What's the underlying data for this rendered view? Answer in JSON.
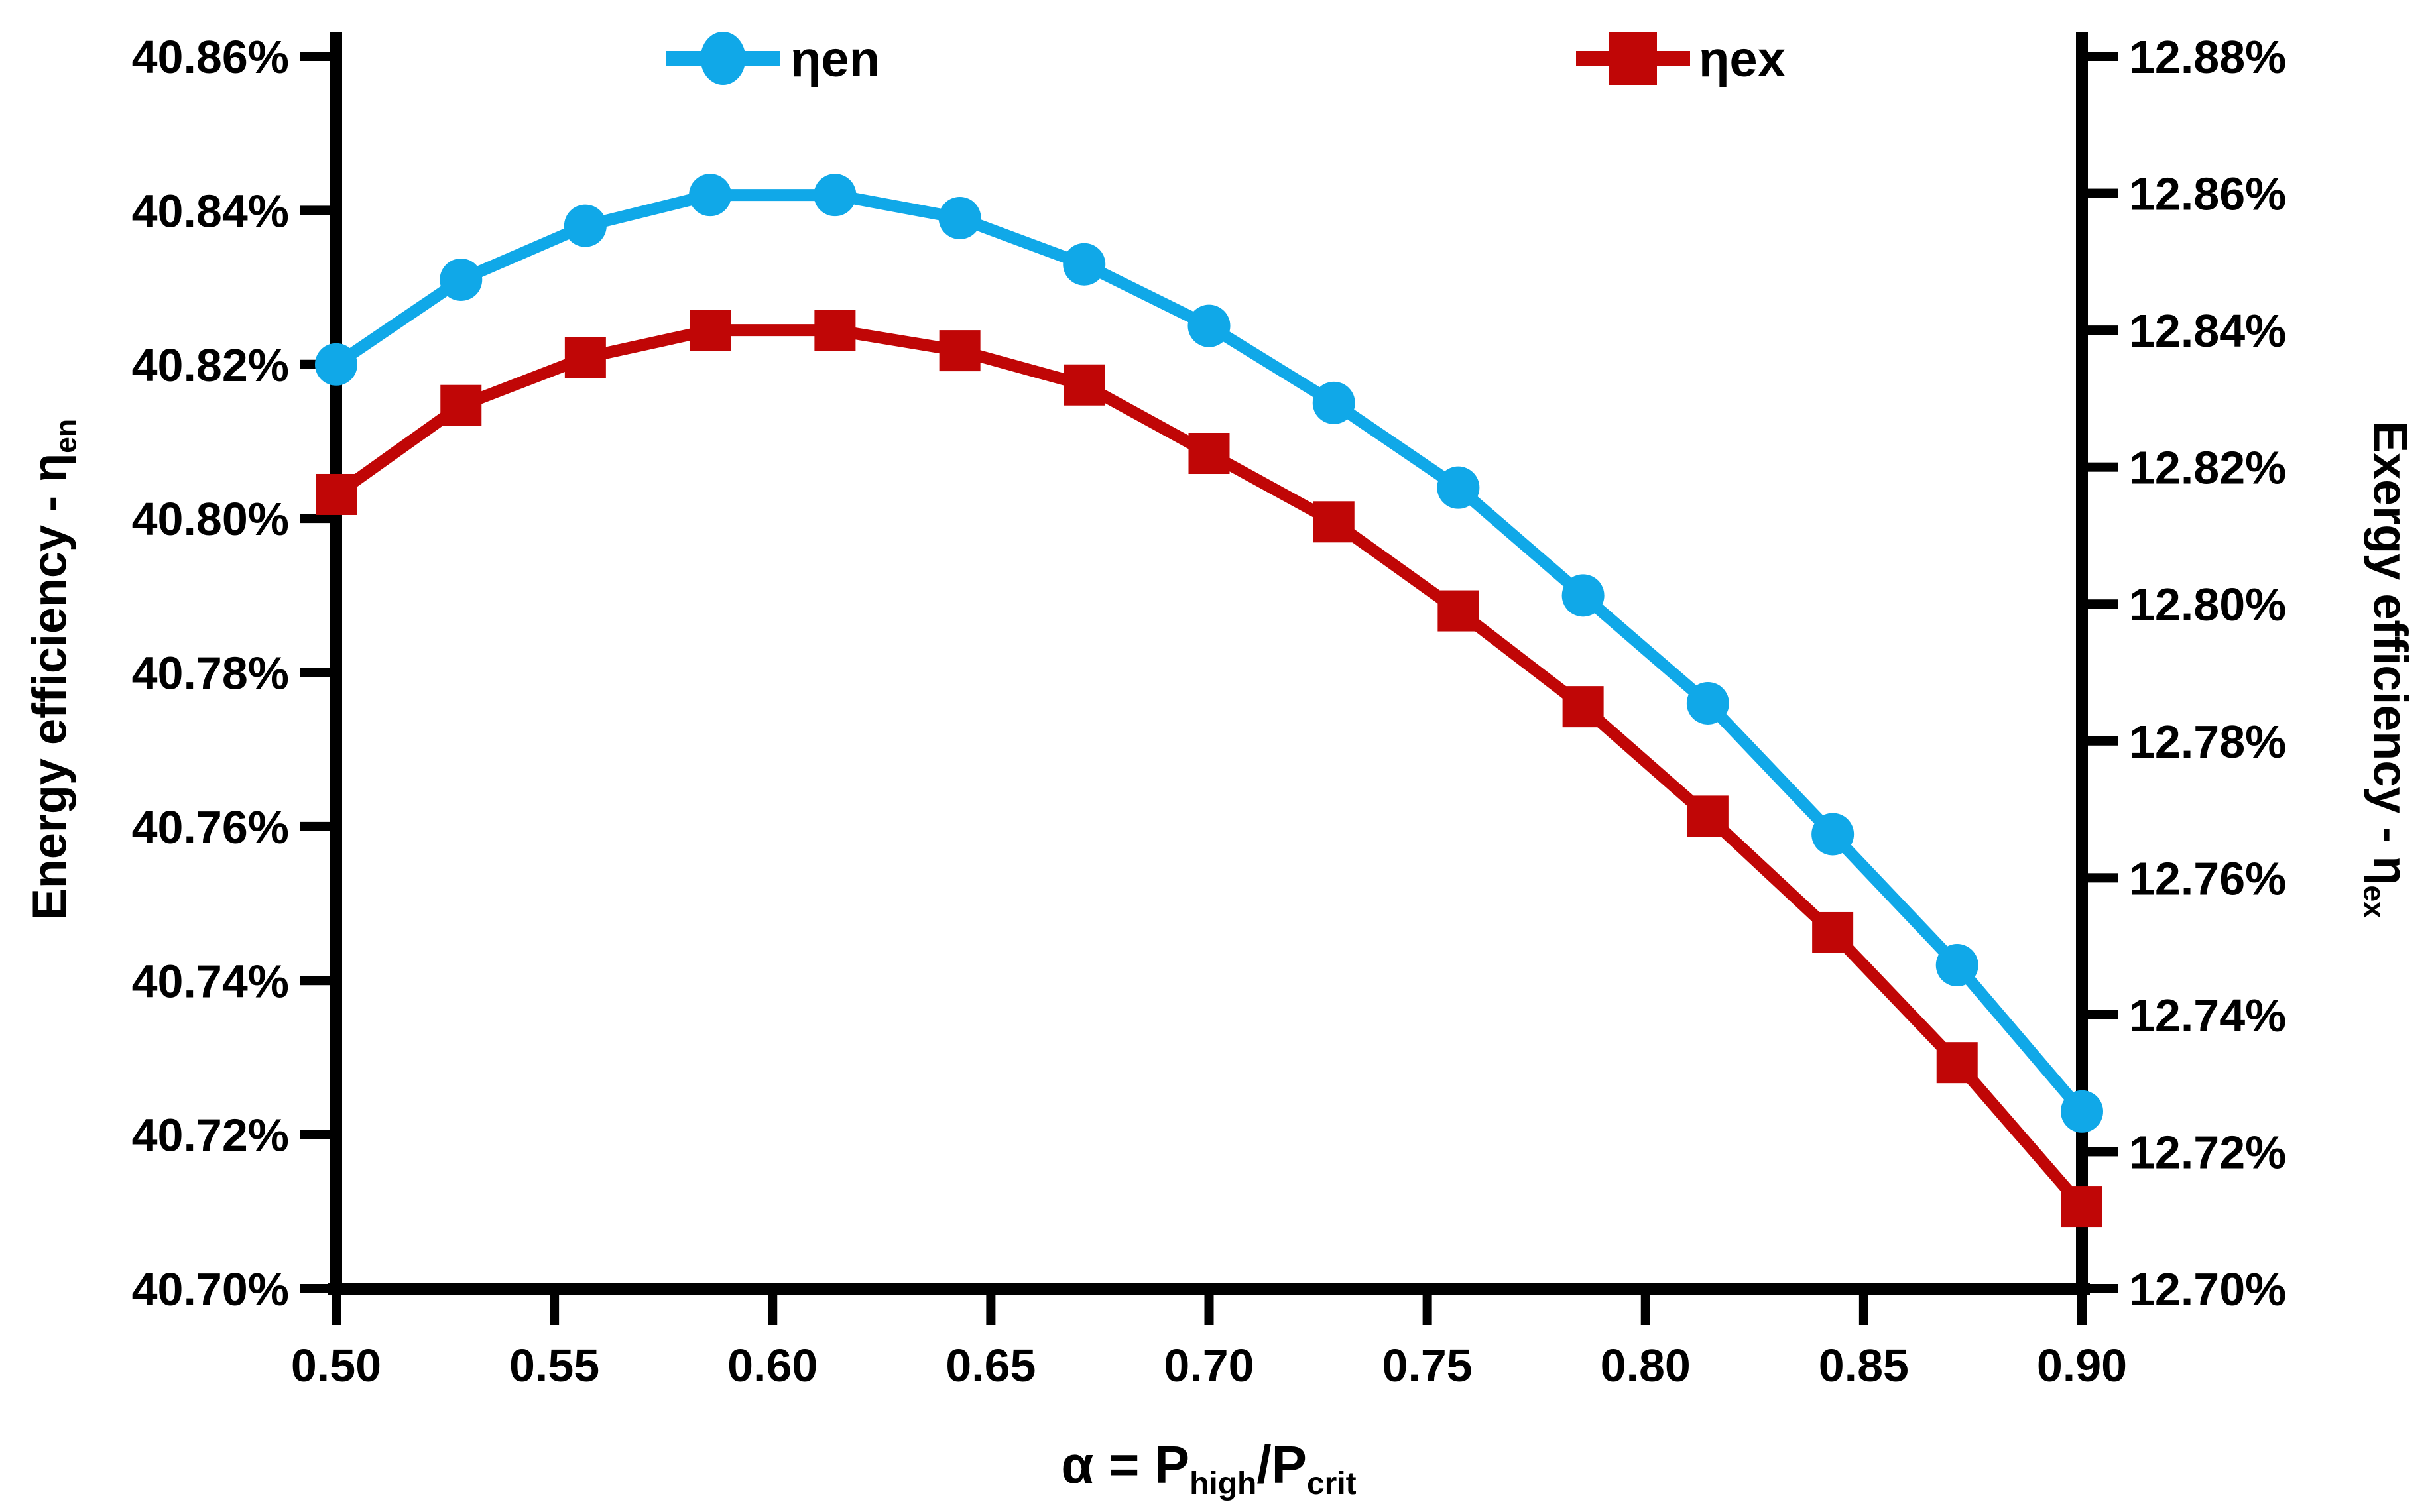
{
  "figure": {
    "background": "#ffffff",
    "legend": {
      "series1_label": "ηen",
      "series2_label": "ηex"
    },
    "left_axis_title": {
      "main": "Energy efficiency - η",
      "sub": "en"
    },
    "right_axis_title": {
      "main": "Exergy efficiency - η",
      "sub": "ex"
    },
    "x_axis_title": {
      "main": "α = P",
      "sub1": "high",
      "mid": "/P",
      "sub2": "crit"
    }
  },
  "chart_data": {
    "type": "line",
    "title": "",
    "legend_position": "top",
    "grid": false,
    "x": [
      0.5,
      0.5286,
      0.5571,
      0.5857,
      0.6143,
      0.6429,
      0.6714,
      0.7,
      0.7286,
      0.7571,
      0.7857,
      0.8143,
      0.8429,
      0.8714,
      0.9
    ],
    "x_range": [
      0.5,
      0.9
    ],
    "x_tick_labels": [
      "0.50",
      "0.55",
      "0.60",
      "0.65",
      "0.70",
      "0.75",
      "0.80",
      "0.85",
      "0.90"
    ],
    "left_axis": {
      "title": "Energy efficiency - ηen",
      "range_pct": [
        40.7,
        40.86
      ],
      "tick_step_pct": 0.02,
      "tick_labels_top_to_bottom": [
        "40.86%",
        "40.84%",
        "40.82%",
        "40.80%",
        "40.78%",
        "40.76%",
        "40.74%",
        "40.72%",
        "40.70%"
      ]
    },
    "right_axis": {
      "title": "Exergy efficiency - ηex",
      "range_pct": [
        12.7,
        12.88
      ],
      "tick_step_pct": 0.02,
      "tick_labels_top_to_bottom": [
        "12.88%",
        "12.86%",
        "12.84%",
        "12.82%",
        "12.80%",
        "12.78%",
        "12.76%",
        "12.74%",
        "12.72%",
        "12.70%"
      ]
    },
    "series": [
      {
        "name": "ηen",
        "axis": "left",
        "color": "#10A8E8",
        "marker": "circle",
        "values_pct": [
          40.82,
          40.831,
          40.838,
          40.842,
          40.842,
          40.839,
          40.833,
          40.825,
          40.815,
          40.804,
          40.79,
          40.776,
          40.759,
          40.742,
          40.723
        ]
      },
      {
        "name": "ηex",
        "axis": "right",
        "color": "#C00606",
        "marker": "square",
        "values_pct": [
          12.816,
          12.829,
          12.836,
          12.84,
          12.84,
          12.837,
          12.832,
          12.822,
          12.812,
          12.799,
          12.785,
          12.769,
          12.752,
          12.733,
          12.712
        ]
      }
    ]
  }
}
